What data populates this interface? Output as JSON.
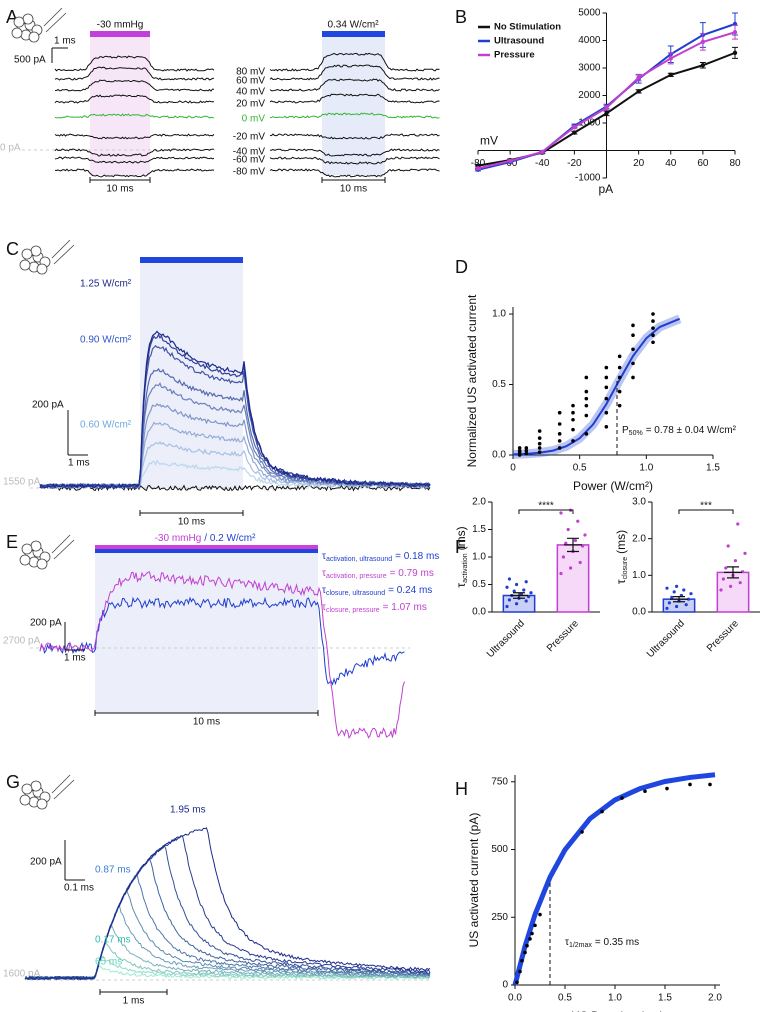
{
  "panel_labels": [
    "A",
    "B",
    "C",
    "D",
    "E",
    "F",
    "G",
    "H"
  ],
  "traces": {
    "A": {
      "stimulus_left": "-30 mmHg",
      "stimulus_right": "0.34 W/cm²",
      "voltages": [
        "80 mV",
        "60 mV",
        "40 mV",
        "20 mV",
        "0 mV",
        "-20 mV",
        "-40 mV",
        "-60 mV",
        "-80 mV"
      ],
      "scale_current": "500 pA",
      "scale_time": "1 ms",
      "baseline": "0 pA",
      "duration": "10 ms"
    },
    "C": {
      "intensities": [
        "1.25 W/cm²",
        "0.90 W/cm²",
        "0.60 W/cm²"
      ],
      "scale_current": "200 pA",
      "scale_time": "1 ms",
      "baseline": "1550 pA",
      "duration": "10 ms"
    },
    "E": {
      "stimulus_pressure": "-30 mmHg",
      "stimulus_us": "/ 0.2 W/cm²",
      "taus": [
        {
          "symbol": "τ",
          "sub": "activation, ultrasound",
          "value": "= 0.18 ms",
          "color": "#1f3fd0"
        },
        {
          "symbol": "τ",
          "sub": "activation, pressure",
          "value": "= 0.79 ms",
          "color": "#c040d0"
        },
        {
          "symbol": "τ",
          "sub": "closure, ultrasound",
          "value": "= 0.24 ms",
          "color": "#1f3fd0"
        },
        {
          "symbol": "τ",
          "sub": "closure, pressure",
          "value": "= 1.07 ms",
          "color": "#c040d0"
        }
      ],
      "scale_current": "200 pA",
      "scale_time": "1 ms",
      "baseline": "2700 pA",
      "duration": "10 ms"
    },
    "G": {
      "durations": [
        "1.95 ms",
        "0.87 ms",
        "0.17 ms",
        "65 ms"
      ],
      "scale_current": "200 pA",
      "scale_time": "0.1 ms",
      "baseline": "1600 pA",
      "duration": "1 ms"
    }
  },
  "chart_data": [
    {
      "type": "line",
      "x": [
        -80,
        -60,
        -40,
        -20,
        0,
        20,
        40,
        60,
        80
      ],
      "xlim": [
        -80,
        80
      ],
      "xticks": [
        -80,
        -60,
        -40,
        -20,
        20,
        40,
        60,
        80
      ],
      "ylim": [
        -1000,
        5000
      ],
      "yticks": [
        -1000,
        1000,
        2000,
        3000,
        4000,
        5000
      ],
      "x_label": "mV",
      "y_label": "pA",
      "legend": "upper left",
      "series": [
        {
          "name": "No Stimulation",
          "color": "#111111",
          "values": [
            -550,
            -350,
            -80,
            650,
            1350,
            2150,
            2750,
            3100,
            3550
          ],
          "errors": [
            40,
            40,
            40,
            50,
            80,
            60,
            60,
            100,
            200
          ]
        },
        {
          "name": "Ultrasound",
          "color": "#1f3fd0",
          "values": [
            -700,
            -420,
            -60,
            900,
            1600,
            2600,
            3500,
            4200,
            4600
          ],
          "errors": [
            40,
            40,
            40,
            60,
            80,
            150,
            300,
            450,
            400
          ]
        },
        {
          "name": "Pressure",
          "color": "#c040d0",
          "values": [
            -650,
            -380,
            -50,
            850,
            1550,
            2650,
            3350,
            3950,
            4300
          ],
          "errors": [
            40,
            40,
            40,
            60,
            80,
            120,
            200,
            300,
            250
          ]
        }
      ]
    },
    {
      "type": "scatter",
      "x_label": "Power (W/cm²)",
      "y_label": "Normalized US activated current",
      "xlim": [
        0,
        1.5
      ],
      "xticks": [
        0,
        0.5,
        {
          "value": 1,
          "label": "1.0"
        },
        1.5
      ],
      "ylim": [
        0,
        1.05
      ],
      "yticks": [
        {
          "value": 0,
          "label": "0.0"
        },
        0.5,
        {
          "value": 1,
          "label": "1.0"
        }
      ],
      "x": [
        0.05,
        0.05,
        0.05,
        0.05,
        0.1,
        0.1,
        0.1,
        0.2,
        0.2,
        0.2,
        0.2,
        0.2,
        0.35,
        0.35,
        0.35,
        0.35,
        0.35,
        0.45,
        0.45,
        0.45,
        0.45,
        0.45,
        0.55,
        0.55,
        0.55,
        0.55,
        0.55,
        0.55,
        0.7,
        0.7,
        0.7,
        0.7,
        0.7,
        0.7,
        0.8,
        0.8,
        0.8,
        0.8,
        0.8,
        0.9,
        0.9,
        0.9,
        0.9,
        0.9,
        1.05,
        1.05,
        1.05,
        1.05,
        1.05
      ],
      "y": [
        0,
        0.02,
        0.03,
        0.05,
        0.01,
        0.03,
        0.05,
        0.02,
        0.05,
        0.08,
        0.12,
        0.17,
        0.05,
        0.1,
        0.15,
        0.22,
        0.3,
        0.1,
        0.18,
        0.25,
        0.3,
        0.35,
        0.15,
        0.28,
        0.35,
        0.4,
        0.45,
        0.55,
        0.2,
        0.3,
        0.4,
        0.48,
        0.55,
        0.62,
        0.35,
        0.45,
        0.55,
        0.62,
        0.7,
        0.55,
        0.65,
        0.75,
        0.85,
        0.92,
        0.8,
        0.85,
        0.9,
        0.95,
        1
      ],
      "fit": {
        "x": [
          0,
          0.1,
          0.2,
          0.3,
          0.4,
          0.5,
          0.6,
          0.7,
          0.8,
          0.9,
          1,
          1.1,
          1.25
        ],
        "y": [
          0.004,
          0.008,
          0.016,
          0.031,
          0.062,
          0.119,
          0.216,
          0.361,
          0.535,
          0.702,
          0.828,
          0.908,
          0.966
        ]
      },
      "color": "#1f3fd0",
      "point_color": "#000000",
      "threshold": 0.78,
      "annotation": {
        "symbol": "P",
        "sub": "50%",
        "text": "= 0.78 ± 0.04 W/cm²"
      }
    },
    {
      "type": "bar",
      "categories": [
        "Ultrasound",
        "Pressure"
      ],
      "values": [
        0.3,
        1.22
      ],
      "errors": [
        0.05,
        0.12
      ],
      "points": [
        [
          0.1,
          0.15,
          0.2,
          0.22,
          0.25,
          0.28,
          0.3,
          0.32,
          0.35,
          0.38,
          0.4,
          0.45,
          0.5,
          0.55,
          0.6
        ],
        [
          0.7,
          0.8,
          0.9,
          1,
          1.1,
          1.2,
          1.25,
          1.3,
          1.4,
          1.5,
          1.65,
          1.8,
          1.85
        ]
      ],
      "colors": [
        "#1f3fd0",
        "#c040d0"
      ],
      "fills": [
        "#c9cff5",
        "#f6d8f8"
      ],
      "ylim": [
        0,
        2
      ],
      "yticks": [
        {
          "value": 0,
          "label": "0.0"
        },
        0.5,
        {
          "value": 1,
          "label": "1.0"
        },
        1.5,
        {
          "value": 2,
          "label": "2.0"
        }
      ],
      "significance": "****",
      "y_label": {
        "symbol": "τ",
        "sub": "activation",
        "unit": "(ms)"
      }
    },
    {
      "type": "bar",
      "categories": [
        "Ultrasound",
        "Pressure"
      ],
      "values": [
        0.35,
        1.08
      ],
      "errors": [
        0.07,
        0.15
      ],
      "points": [
        [
          0.1,
          0.15,
          0.2,
          0.25,
          0.3,
          0.35,
          0.4,
          0.45,
          0.5,
          0.55,
          0.6,
          0.65,
          0.7
        ],
        [
          0.6,
          0.7,
          0.8,
          0.9,
          1,
          1.1,
          1.2,
          1.4,
          1.6,
          1.8,
          2.4
        ]
      ],
      "colors": [
        "#1f3fd0",
        "#c040d0"
      ],
      "fills": [
        "#c9cff5",
        "#f6d8f8"
      ],
      "ylim": [
        0,
        3
      ],
      "yticks": [
        {
          "value": 0,
          "label": "0.0"
        },
        {
          "value": 1,
          "label": "1.0"
        },
        {
          "value": 2,
          "label": "2.0"
        },
        {
          "value": 3,
          "label": "3.0"
        }
      ],
      "significance": "***",
      "y_label": {
        "symbol": "τ",
        "sub": "closure",
        "unit": "(ms)"
      }
    },
    {
      "type": "scatter",
      "x_label": "US Duration (ms)",
      "y_label": "US activated current (pA)",
      "xlim": [
        0,
        2.05
      ],
      "xticks": [
        {
          "value": 0,
          "label": "0.0"
        },
        0.5,
        {
          "value": 1,
          "label": "1.0"
        },
        1.5,
        {
          "value": 2,
          "label": "2.0"
        }
      ],
      "ylim": [
        0,
        775
      ],
      "yticks": [
        0,
        250,
        500,
        750
      ],
      "x": [
        0.02,
        0.05,
        0.07,
        0.1,
        0.12,
        0.15,
        0.17,
        0.2,
        0.25,
        0.67,
        0.87,
        1.07,
        1.3,
        1.52,
        1.75,
        1.95
      ],
      "y": [
        10,
        50,
        90,
        120,
        145,
        170,
        190,
        220,
        260,
        565,
        640,
        690,
        715,
        725,
        740,
        740
      ],
      "fit": {
        "x": [
          0,
          0.1,
          0.2,
          0.35,
          0.5,
          0.75,
          1,
          1.25,
          1.5,
          1.75,
          2
        ],
        "y": [
          0,
          143,
          260,
          398,
          499,
          614,
          683,
          725,
          751,
          766,
          776
        ]
      },
      "color": "#1f47e0",
      "point_color": "#000000",
      "threshold": 0.35,
      "annotation": {
        "symbol": "τ",
        "sub": "1/2max",
        "text": "= 0.35 ms"
      }
    }
  ]
}
